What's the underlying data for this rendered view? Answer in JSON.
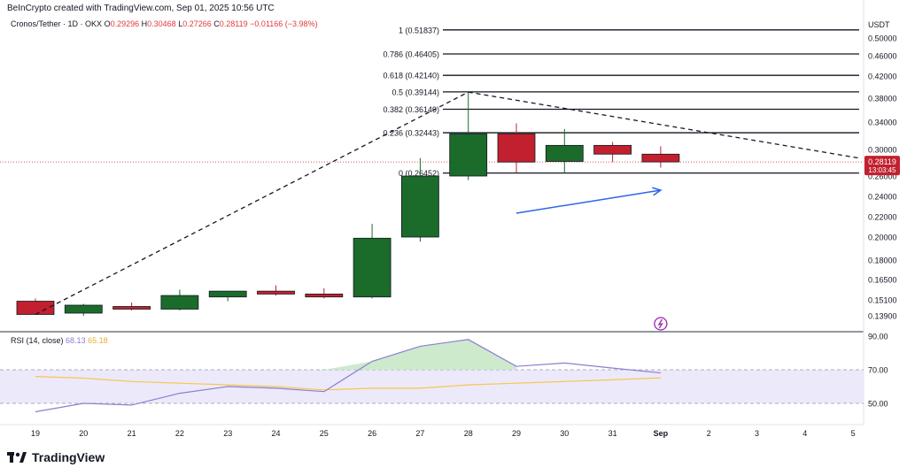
{
  "header": "BeInCrypto created with TradingView.com, Sep 01, 2025 10:56 UTC",
  "symbol": {
    "name": "Cronos/Tether · 1D · OKX",
    "open_label": "O",
    "open": "0.29296",
    "high_label": "H",
    "high": "0.30468",
    "low_label": "L",
    "low": "0.27266",
    "close_label": "C",
    "close": "0.28119",
    "change": "−0.01166 (−3.98%)"
  },
  "price_axis": {
    "currency": "USDT",
    "ticks": [
      "0.50000",
      "0.46000",
      "0.42000",
      "0.38000",
      "0.34000",
      "0.30000",
      "0.26000",
      "0.24000",
      "0.22000",
      "0.20000",
      "0.18000",
      "0.16500",
      "0.15100",
      "0.13900"
    ],
    "last_price": "0.28119",
    "countdown": "13:03:45"
  },
  "fib_levels": [
    {
      "label": "1 (0.51837)",
      "value": 0.51837
    },
    {
      "label": "0.786 (0.46405)",
      "value": 0.46405
    },
    {
      "label": "0.618 (0.42140)",
      "value": 0.4214
    },
    {
      "label": "0.5 (0.39144)",
      "value": 0.39144
    },
    {
      "label": "0.382 (0.36149)",
      "value": 0.36149
    },
    {
      "label": "0.236 (0.32443)",
      "value": 0.32443
    },
    {
      "label": "0 (0.26452)",
      "value": 0.26452
    }
  ],
  "rsi": {
    "label": "RSI (14, close)",
    "value": "68.13",
    "ma_value": "65.18",
    "ticks": [
      "90.00",
      "70.00",
      "50.00"
    ]
  },
  "x_axis": {
    "ticks": [
      "19",
      "20",
      "21",
      "22",
      "23",
      "24",
      "25",
      "26",
      "27",
      "28",
      "29",
      "30",
      "31",
      "Sep",
      "2",
      "3",
      "4",
      "5"
    ]
  },
  "colors": {
    "up": "#1b6b2a",
    "down": "#c2202f",
    "rsi_line": "#8a7fd0",
    "rsi_ma": "#f5c84b",
    "annotation": "#2e66e8",
    "price_label": "#c2202f"
  },
  "brand": "TradingView",
  "chart_data": [
    {
      "type": "candlestick",
      "x": [
        "19",
        "20",
        "21",
        "22",
        "23",
        "24",
        "25",
        "26",
        "27",
        "28",
        "29",
        "30",
        "31",
        "Sep"
      ],
      "ohlc": [
        {
          "o": 0.15,
          "h": 0.152,
          "l": 0.14,
          "c": 0.14
        },
        {
          "o": 0.141,
          "h": 0.148,
          "l": 0.139,
          "c": 0.147
        },
        {
          "o": 0.146,
          "h": 0.149,
          "l": 0.143,
          "c": 0.144
        },
        {
          "o": 0.144,
          "h": 0.158,
          "l": 0.143,
          "c": 0.154
        },
        {
          "o": 0.153,
          "h": 0.157,
          "l": 0.15,
          "c": 0.157
        },
        {
          "o": 0.157,
          "h": 0.161,
          "l": 0.154,
          "c": 0.155
        },
        {
          "o": 0.155,
          "h": 0.159,
          "l": 0.152,
          "c": 0.153
        },
        {
          "o": 0.153,
          "h": 0.213,
          "l": 0.152,
          "c": 0.199
        },
        {
          "o": 0.2,
          "h": 0.287,
          "l": 0.196,
          "c": 0.26
        },
        {
          "o": 0.26,
          "h": 0.391,
          "l": 0.256,
          "c": 0.323
        },
        {
          "o": 0.323,
          "h": 0.338,
          "l": 0.265,
          "c": 0.281
        },
        {
          "o": 0.282,
          "h": 0.33,
          "l": 0.265,
          "c": 0.306
        },
        {
          "o": 0.306,
          "h": 0.311,
          "l": 0.281,
          "c": 0.293
        },
        {
          "o": 0.29296,
          "h": 0.30468,
          "l": 0.27266,
          "c": 0.28119
        }
      ],
      "ylim": [
        0.139,
        0.518
      ]
    },
    {
      "type": "line",
      "title": "RSI (14, close)",
      "x": [
        "19",
        "20",
        "21",
        "22",
        "23",
        "24",
        "25",
        "26",
        "27",
        "28",
        "29",
        "30",
        "31",
        "Sep"
      ],
      "series": [
        {
          "name": "RSI",
          "values": [
            45,
            50,
            49,
            56,
            60,
            59,
            57,
            75,
            84,
            88,
            72,
            74,
            71,
            68.13
          ]
        },
        {
          "name": "MA",
          "values": [
            66,
            65,
            63,
            62,
            61,
            60,
            58,
            59,
            59,
            61,
            62,
            63,
            64,
            65.18
          ]
        }
      ],
      "ylim": [
        45,
        90
      ],
      "bands": [
        50,
        70
      ]
    }
  ]
}
